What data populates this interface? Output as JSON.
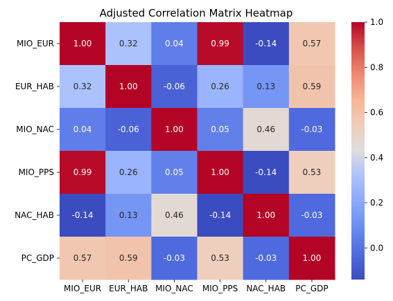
{
  "chart_data": {
    "type": "heatmap",
    "title": "Adjusted Correlation Matrix Heatmap",
    "xlabel": "",
    "ylabel": "",
    "x_labels": [
      "MIO_EUR",
      "EUR_HAB",
      "MIO_NAC",
      "MIO_PPS",
      "NAC_HAB",
      "PC_GDP"
    ],
    "y_labels": [
      "MIO_EUR",
      "EUR_HAB",
      "MIO_NAC",
      "MIO_PPS",
      "NAC_HAB",
      "PC_GDP"
    ],
    "matrix": [
      [
        1.0,
        0.32,
        0.04,
        0.99,
        -0.14,
        0.57
      ],
      [
        0.32,
        1.0,
        -0.06,
        0.26,
        0.13,
        0.59
      ],
      [
        0.04,
        -0.06,
        1.0,
        0.05,
        0.46,
        -0.03
      ],
      [
        0.99,
        0.26,
        0.05,
        1.0,
        -0.14,
        0.53
      ],
      [
        -0.14,
        0.13,
        0.46,
        -0.14,
        1.0,
        -0.03
      ],
      [
        0.57,
        0.59,
        -0.03,
        0.53,
        -0.03,
        1.0
      ]
    ],
    "value_format": "2 decimals",
    "colormap": "coolwarm",
    "colorbar": {
      "range": [
        -0.14,
        1.0
      ],
      "ticks": [
        "0.0",
        "0.2",
        "0.4",
        "0.6",
        "0.8",
        "1.0"
      ]
    }
  }
}
